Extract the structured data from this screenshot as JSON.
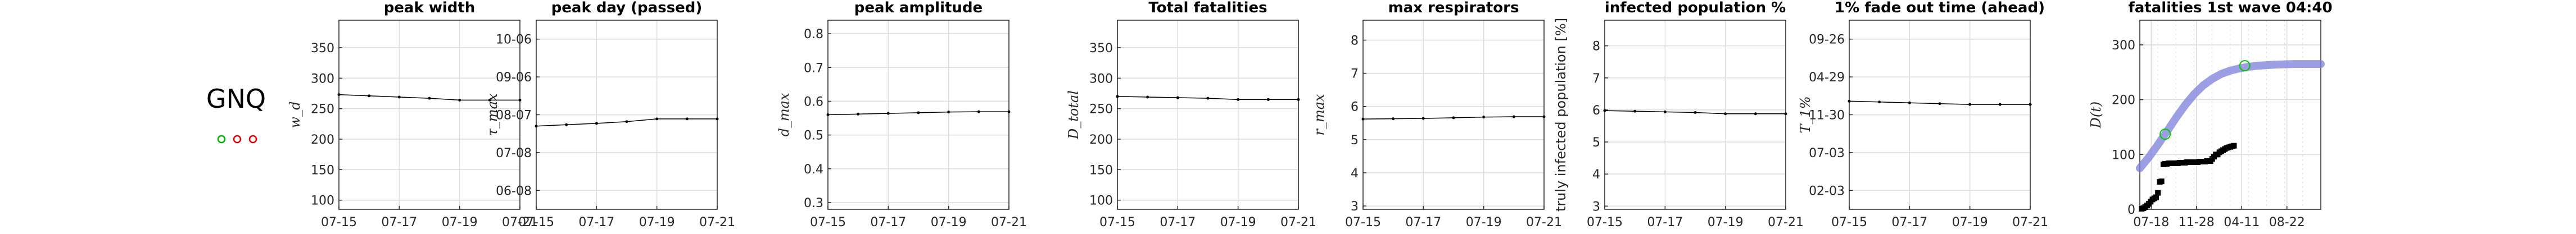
{
  "country": {
    "code": "GNQ",
    "markers": [
      {
        "color": "#00b000"
      },
      {
        "color": "#e00000"
      },
      {
        "color": "#e00000"
      }
    ]
  },
  "colors": {
    "axis": "#262626",
    "grid": "#dcdcdc",
    "line": "#000000",
    "band": "#7b7fd9",
    "green_circle": "#00c800",
    "wave_points": "#000000"
  },
  "chart_data": [
    {
      "type": "line",
      "title": "peak width",
      "ylabel": "w_d",
      "ylabel_italic": true,
      "categories": [
        "07-15",
        "07-16",
        "07-17",
        "07-18",
        "07-19",
        "07-20",
        "07-21"
      ],
      "xticks": [
        "07-15",
        "07-17",
        "07-19",
        "07-21"
      ],
      "yticks": [
        "100",
        "150",
        "200",
        "250",
        "300",
        "350"
      ],
      "ylim": [
        85,
        395
      ],
      "values": [
        273,
        271,
        269,
        267,
        264,
        264,
        264
      ],
      "grid": true
    },
    {
      "type": "line",
      "title": "peak day (passed)",
      "ylabel": "τ_max",
      "ylabel_italic": true,
      "categories": [
        "07-15",
        "07-16",
        "07-17",
        "07-18",
        "07-19",
        "07-20",
        "07-21"
      ],
      "xticks": [
        "07-15",
        "07-17",
        "07-19",
        "07-21"
      ],
      "yticks": [
        "06-08",
        "07-08",
        "08-07",
        "09-06",
        "10-06"
      ],
      "ylim": [
        0,
        5.5
      ],
      "values": [
        2.42,
        2.46,
        2.5,
        2.55,
        2.63,
        2.63,
        2.63
      ],
      "grid": true
    },
    {
      "type": "line",
      "title": "peak amplitude",
      "ylabel": "d_max",
      "ylabel_italic": true,
      "categories": [
        "07-15",
        "07-16",
        "07-17",
        "07-18",
        "07-19",
        "07-20",
        "07-21"
      ],
      "xticks": [
        "07-15",
        "07-17",
        "07-19",
        "07-21"
      ],
      "yticks": [
        "0.3",
        "0.4",
        "0.5",
        "0.6",
        "0.7",
        "0.8"
      ],
      "ylim": [
        0.28,
        0.84
      ],
      "values": [
        0.56,
        0.562,
        0.564,
        0.566,
        0.568,
        0.569,
        0.569
      ],
      "grid": true
    },
    {
      "type": "line",
      "title": "Total fatalities",
      "ylabel": "D_total",
      "ylabel_italic": true,
      "categories": [
        "07-15",
        "07-16",
        "07-17",
        "07-18",
        "07-19",
        "07-20",
        "07-21"
      ],
      "xticks": [
        "07-15",
        "07-17",
        "07-19",
        "07-21"
      ],
      "yticks": [
        "100",
        "150",
        "200",
        "250",
        "300",
        "350"
      ],
      "ylim": [
        85,
        395
      ],
      "values": [
        270,
        269,
        268,
        267,
        265,
        265,
        265
      ],
      "grid": true
    },
    {
      "type": "line",
      "title": "max respirators",
      "ylabel": "r_max",
      "ylabel_italic": true,
      "categories": [
        "07-15",
        "07-16",
        "07-17",
        "07-18",
        "07-19",
        "07-20",
        "07-21"
      ],
      "xticks": [
        "07-15",
        "07-17",
        "07-19",
        "07-21"
      ],
      "yticks": [
        "3",
        "4",
        "5",
        "6",
        "7",
        "8"
      ],
      "ylim": [
        2.9,
        8.6
      ],
      "values": [
        5.62,
        5.63,
        5.64,
        5.66,
        5.68,
        5.69,
        5.69
      ],
      "grid": true
    },
    {
      "type": "line",
      "title": "infected population %",
      "ylabel": "truly infected population [%]",
      "ylabel_italic": false,
      "categories": [
        "07-15",
        "07-16",
        "07-17",
        "07-18",
        "07-19",
        "07-20",
        "07-21"
      ],
      "xticks": [
        "07-15",
        "07-17",
        "07-19",
        "07-21"
      ],
      "yticks": [
        "3",
        "4",
        "5",
        "6",
        "7",
        "8"
      ],
      "ylim": [
        2.9,
        8.8
      ],
      "values": [
        5.98,
        5.96,
        5.94,
        5.92,
        5.88,
        5.88,
        5.88
      ],
      "grid": true
    },
    {
      "type": "line",
      "title": "1% fade out time (ahead)",
      "ylabel": "T_1%",
      "ylabel_italic": true,
      "categories": [
        "07-15",
        "07-16",
        "07-17",
        "07-18",
        "07-19",
        "07-20",
        "07-21"
      ],
      "xticks": [
        "07-15",
        "07-17",
        "07-19",
        "07-21"
      ],
      "yticks": [
        "02-03",
        "07-03",
        "11-30",
        "04-29",
        "09-26"
      ],
      "ylim": [
        0,
        4.6
      ],
      "values": [
        2.63,
        2.61,
        2.59,
        2.57,
        2.55,
        2.55,
        2.55
      ],
      "grid": true
    },
    {
      "type": "scatter",
      "title": "fatalities 1st wave 04:40",
      "ylabel": "D(t)",
      "ylabel_italic": true,
      "xticks": [
        "07-18",
        "11-28",
        "04-11",
        "08-22"
      ],
      "yticks": [
        "0",
        "100",
        "200",
        "300"
      ],
      "xlim": [
        0,
        1
      ],
      "ylim": [
        0,
        345
      ],
      "grid": true,
      "model_curve": {
        "x": [
          0,
          0.05,
          0.1,
          0.15,
          0.2,
          0.25,
          0.3,
          0.35,
          0.4,
          0.45,
          0.5,
          0.55,
          0.6,
          0.65,
          0.7,
          0.75,
          0.8,
          0.85,
          0.9,
          0.95,
          1.0
        ],
        "y": [
          75,
          95,
          118,
          142,
          167,
          190,
          210,
          226,
          238,
          247,
          253,
          257,
          260,
          262,
          263,
          264,
          264.5,
          265,
          265,
          265,
          265
        ]
      },
      "green_circles": {
        "x": [
          0.14,
          0.58
        ],
        "y": [
          137,
          262
        ]
      },
      "observed": {
        "x": [
          0.01,
          0.02,
          0.03,
          0.04,
          0.05,
          0.06,
          0.07,
          0.08,
          0.09,
          0.1,
          0.11,
          0.12,
          0.13,
          0.14,
          0.15,
          0.16,
          0.17,
          0.18,
          0.19,
          0.2,
          0.21,
          0.22,
          0.23,
          0.24,
          0.25,
          0.26,
          0.27,
          0.28,
          0.29,
          0.3,
          0.31,
          0.32,
          0.33,
          0.34,
          0.35,
          0.36,
          0.37,
          0.38,
          0.39,
          0.4,
          0.41,
          0.42,
          0.43,
          0.44,
          0.45,
          0.46,
          0.47,
          0.48,
          0.49,
          0.5,
          0.51,
          0.52
        ],
        "y": [
          1,
          2,
          4,
          7,
          10,
          14,
          18,
          20,
          22,
          30,
          50,
          51,
          82,
          83,
          83,
          84,
          84,
          84,
          84,
          84,
          84,
          85,
          85,
          85,
          85,
          86,
          86,
          86,
          86,
          86,
          86,
          86,
          87,
          87,
          87,
          87,
          88,
          88,
          88,
          92,
          96,
          100,
          100,
          104,
          106,
          108,
          110,
          112,
          113,
          114,
          115,
          116
        ]
      }
    }
  ]
}
